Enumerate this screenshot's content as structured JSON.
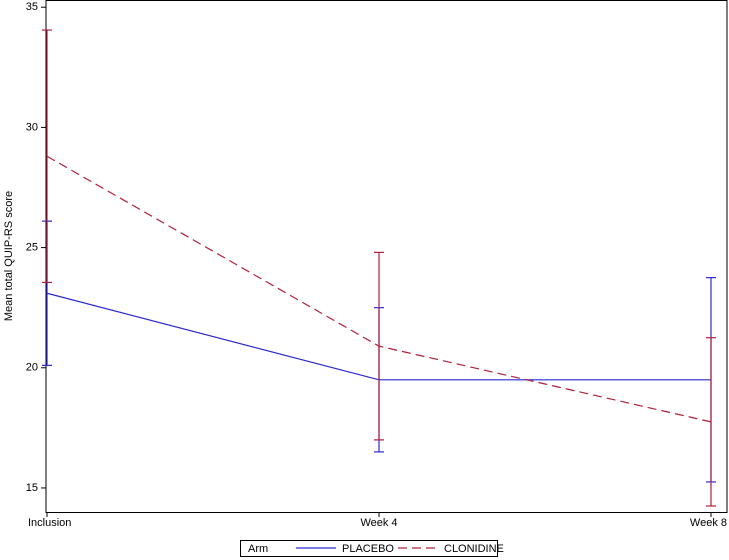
{
  "chart_data": {
    "type": "line",
    "y_label": "Mean total QUIP-RS score",
    "categories": [
      "Inclusion",
      "Week 4",
      "Week 8"
    ],
    "series": [
      {
        "name": "PLACEBO",
        "color": "#2a2ad0",
        "line_style": "solid",
        "values": [
          23.1,
          19.5,
          19.5
        ],
        "errors": [
          3.0,
          3.0,
          4.25
        ]
      },
      {
        "name": "CLONIDINE",
        "color": "#b0203c",
        "line_style": "dashed",
        "values": [
          28.8,
          20.9,
          17.75
        ],
        "errors": [
          5.25,
          3.9,
          3.5
        ]
      }
    ],
    "ylim": [
      14,
      35.3
    ],
    "yticks": [
      15,
      20,
      25,
      30,
      35
    ],
    "legend_title": "Arm",
    "legend_position": "bottom"
  }
}
